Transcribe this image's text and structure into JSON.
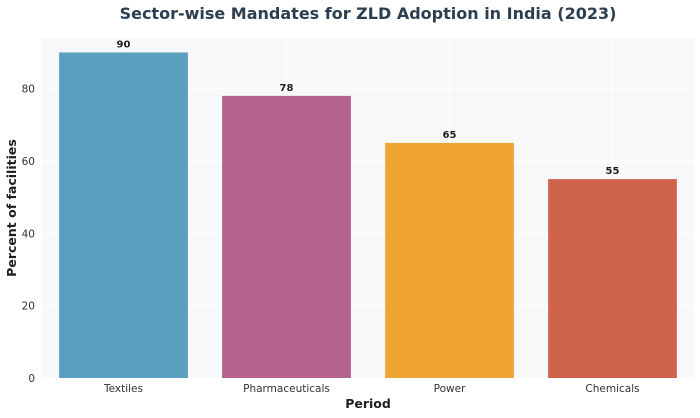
{
  "chart_data": {
    "type": "bar",
    "title": "Sector-wise Mandates for ZLD Adoption in India (2023)",
    "xlabel": "Period",
    "ylabel": "Percent of facilities",
    "categories": [
      "Textiles",
      "Pharmaceuticals",
      "Power",
      "Chemicals"
    ],
    "values": [
      90,
      78,
      65,
      55
    ],
    "colors": [
      "#5a9fbd",
      "#b3628c",
      "#f0a433",
      "#d0644b"
    ],
    "ylim": [
      0,
      94
    ],
    "yticks": [
      0,
      20,
      40,
      60,
      80
    ],
    "grid": true,
    "plot_background": "#f7f8fa"
  }
}
